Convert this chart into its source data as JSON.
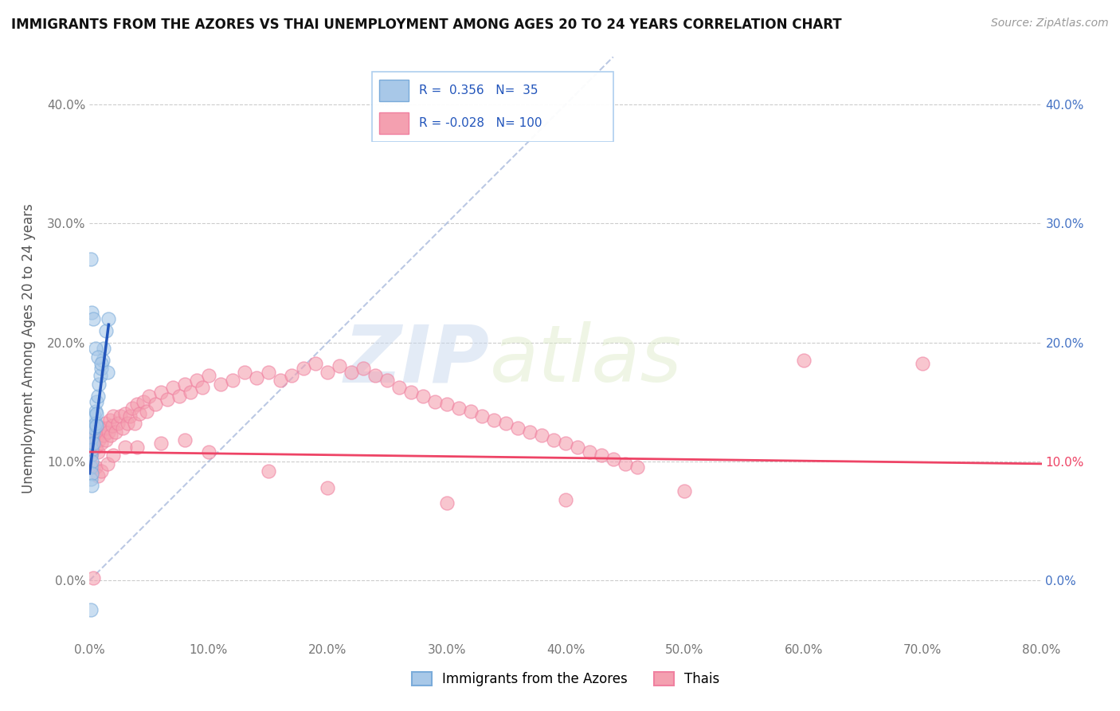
{
  "title": "IMMIGRANTS FROM THE AZORES VS THAI UNEMPLOYMENT AMONG AGES 20 TO 24 YEARS CORRELATION CHART",
  "source": "Source: ZipAtlas.com",
  "ylabel": "Unemployment Among Ages 20 to 24 years",
  "xlim": [
    0.0,
    0.8
  ],
  "ylim": [
    -0.05,
    0.44
  ],
  "xticks": [
    0.0,
    0.1,
    0.2,
    0.3,
    0.4,
    0.5,
    0.6,
    0.7,
    0.8
  ],
  "yticks": [
    0.0,
    0.1,
    0.2,
    0.3,
    0.4
  ],
  "xtick_labels": [
    "0.0%",
    "10.0%",
    "20.0%",
    "30.0%",
    "40.0%",
    "50.0%",
    "60.0%",
    "70.0%",
    "80.0%"
  ],
  "ytick_labels": [
    "0.0%",
    "10.0%",
    "20.0%",
    "30.0%",
    "40.0%"
  ],
  "watermark_zip": "ZIP",
  "watermark_atlas": "atlas",
  "label1": "Immigrants from the Azores",
  "label2": "Thais",
  "blue_color": "#a8c8e8",
  "pink_color": "#f4a0b0",
  "blue_edge": "#7aabda",
  "pink_edge": "#f080a0",
  "blue_line_color": "#2255bb",
  "pink_line_color": "#ee4466",
  "ref_line_color": "#aabbdd",
  "azores_x": [
    0.001,
    0.001,
    0.001,
    0.001,
    0.002,
    0.002,
    0.002,
    0.002,
    0.002,
    0.003,
    0.003,
    0.003,
    0.004,
    0.004,
    0.005,
    0.005,
    0.006,
    0.006,
    0.006,
    0.007,
    0.008,
    0.009,
    0.01,
    0.011,
    0.012,
    0.014,
    0.016,
    0.001,
    0.002,
    0.003,
    0.005,
    0.007,
    0.01,
    0.015,
    0.001
  ],
  "azores_y": [
    0.115,
    0.105,
    0.095,
    0.085,
    0.12,
    0.11,
    0.1,
    0.09,
    0.08,
    0.13,
    0.125,
    0.115,
    0.138,
    0.128,
    0.142,
    0.132,
    0.15,
    0.14,
    0.13,
    0.155,
    0.165,
    0.172,
    0.178,
    0.185,
    0.195,
    0.21,
    0.22,
    0.27,
    0.225,
    0.22,
    0.195,
    0.188,
    0.182,
    0.175,
    -0.025
  ],
  "thais_x": [
    0.001,
    0.002,
    0.003,
    0.004,
    0.005,
    0.006,
    0.007,
    0.008,
    0.009,
    0.01,
    0.011,
    0.012,
    0.013,
    0.014,
    0.015,
    0.016,
    0.017,
    0.018,
    0.019,
    0.02,
    0.022,
    0.024,
    0.026,
    0.028,
    0.03,
    0.032,
    0.034,
    0.036,
    0.038,
    0.04,
    0.042,
    0.045,
    0.048,
    0.05,
    0.055,
    0.06,
    0.065,
    0.07,
    0.075,
    0.08,
    0.085,
    0.09,
    0.095,
    0.1,
    0.11,
    0.12,
    0.13,
    0.14,
    0.15,
    0.16,
    0.17,
    0.18,
    0.19,
    0.2,
    0.21,
    0.22,
    0.23,
    0.24,
    0.25,
    0.26,
    0.27,
    0.28,
    0.29,
    0.3,
    0.31,
    0.32,
    0.33,
    0.34,
    0.35,
    0.36,
    0.37,
    0.38,
    0.39,
    0.4,
    0.41,
    0.42,
    0.43,
    0.44,
    0.45,
    0.46,
    0.001,
    0.003,
    0.005,
    0.007,
    0.01,
    0.015,
    0.02,
    0.03,
    0.04,
    0.06,
    0.08,
    0.1,
    0.15,
    0.2,
    0.3,
    0.4,
    0.5,
    0.6,
    0.7,
    0.003
  ],
  "thais_y": [
    0.115,
    0.108,
    0.118,
    0.125,
    0.112,
    0.12,
    0.108,
    0.118,
    0.125,
    0.115,
    0.128,
    0.122,
    0.132,
    0.118,
    0.128,
    0.125,
    0.135,
    0.122,
    0.13,
    0.138,
    0.125,
    0.132,
    0.138,
    0.128,
    0.14,
    0.132,
    0.138,
    0.145,
    0.132,
    0.148,
    0.14,
    0.15,
    0.142,
    0.155,
    0.148,
    0.158,
    0.152,
    0.162,
    0.155,
    0.165,
    0.158,
    0.168,
    0.162,
    0.172,
    0.165,
    0.168,
    0.175,
    0.17,
    0.175,
    0.168,
    0.172,
    0.178,
    0.182,
    0.175,
    0.18,
    0.175,
    0.178,
    0.172,
    0.168,
    0.162,
    0.158,
    0.155,
    0.15,
    0.148,
    0.145,
    0.142,
    0.138,
    0.135,
    0.132,
    0.128,
    0.125,
    0.122,
    0.118,
    0.115,
    0.112,
    0.108,
    0.105,
    0.102,
    0.098,
    0.095,
    0.105,
    0.095,
    0.095,
    0.088,
    0.092,
    0.098,
    0.105,
    0.112,
    0.112,
    0.115,
    0.118,
    0.108,
    0.092,
    0.078,
    0.065,
    0.068,
    0.075,
    0.185,
    0.182,
    0.002
  ]
}
